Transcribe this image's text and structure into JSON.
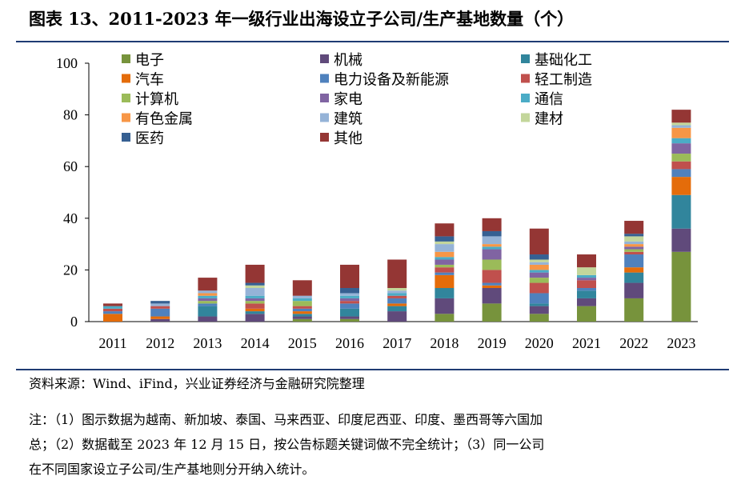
{
  "title": "图表 13、2011-2023 年一级行业出海设立子公司/生产基地数量（个）",
  "source": "资料来源：Wind、iFind，兴业证券经济与金融研究院整理",
  "notes": [
    "注：（1）图示数据为越南、新加坡、泰国、马来西亚、印度尼西亚、印度、墨西哥等六国加",
    "总；（2）数据截至 2023 年 12 月 15 日，按公告标题关键词做不完全统计；（3）同一公司",
    "在不同国家设立子公司/生产基地则分开纳入统计。"
  ],
  "chart_data": {
    "type": "bar",
    "stacked": true,
    "categories": [
      "2011",
      "2012",
      "2013",
      "2014",
      "2015",
      "2016",
      "2017",
      "2018",
      "2019",
      "2020",
      "2021",
      "2022",
      "2023"
    ],
    "ylim": [
      0,
      100
    ],
    "yticks": [
      0,
      20,
      40,
      60,
      80,
      100
    ],
    "grid": false,
    "legend_position": "top-left",
    "series": [
      {
        "name": "电子",
        "color": "#77933c",
        "values": [
          0,
          0,
          0,
          0,
          1,
          1,
          0,
          3,
          7,
          3,
          6,
          9,
          27
        ]
      },
      {
        "name": "机械",
        "color": "#604a7b",
        "values": [
          0,
          1,
          2,
          3,
          1,
          1,
          4,
          6,
          6,
          3,
          3,
          6,
          9
        ]
      },
      {
        "name": "基础化工",
        "color": "#31859c",
        "values": [
          0,
          0,
          4,
          1,
          1,
          3,
          2,
          4,
          0,
          1,
          3,
          4,
          13
        ]
      },
      {
        "name": "汽车",
        "color": "#e46c0a",
        "values": [
          3,
          1,
          0,
          1,
          1,
          0,
          1,
          5,
          1,
          0,
          0,
          2,
          7
        ]
      },
      {
        "name": "电力设备及新能源",
        "color": "#4f81bd",
        "values": [
          1,
          3,
          1,
          0,
          1,
          2,
          2,
          1,
          1,
          4,
          1,
          5,
          3
        ]
      },
      {
        "name": "轻工制造",
        "color": "#c0504d",
        "values": [
          1,
          1,
          0,
          2,
          1,
          1,
          1,
          2,
          5,
          4,
          3,
          1,
          3
        ]
      },
      {
        "name": "计算机",
        "color": "#9bbb59",
        "values": [
          0,
          0,
          1,
          1,
          2,
          0,
          0,
          1,
          4,
          2,
          0,
          1,
          3
        ]
      },
      {
        "name": "家电",
        "color": "#8064a2",
        "values": [
          0,
          0,
          1,
          1,
          0,
          1,
          0,
          2,
          4,
          2,
          1,
          1,
          4
        ]
      },
      {
        "name": "通信",
        "color": "#4bacc6",
        "values": [
          1,
          0,
          1,
          1,
          1,
          1,
          1,
          1,
          1,
          1,
          1,
          0,
          2
        ]
      },
      {
        "name": "有色金属",
        "color": "#f79646",
        "values": [
          0,
          0,
          1,
          0,
          0,
          0,
          0,
          2,
          1,
          2,
          0,
          1,
          4
        ]
      },
      {
        "name": "建筑",
        "color": "#95b3d7",
        "values": [
          0,
          1,
          1,
          3,
          1,
          1,
          1,
          3,
          3,
          1,
          0,
          1,
          1
        ]
      },
      {
        "name": "建材",
        "color": "#c3d69b",
        "values": [
          0,
          0,
          0,
          1,
          0,
          0,
          1,
          1,
          0,
          1,
          3,
          2,
          1
        ]
      },
      {
        "name": "医药",
        "color": "#366092",
        "values": [
          0,
          1,
          0,
          1,
          0,
          2,
          0,
          2,
          2,
          2,
          0,
          1,
          0
        ]
      },
      {
        "name": "其他",
        "color": "#943634",
        "values": [
          1,
          0,
          5,
          7,
          6,
          9,
          11,
          5,
          5,
          10,
          5,
          5,
          5
        ]
      }
    ]
  }
}
